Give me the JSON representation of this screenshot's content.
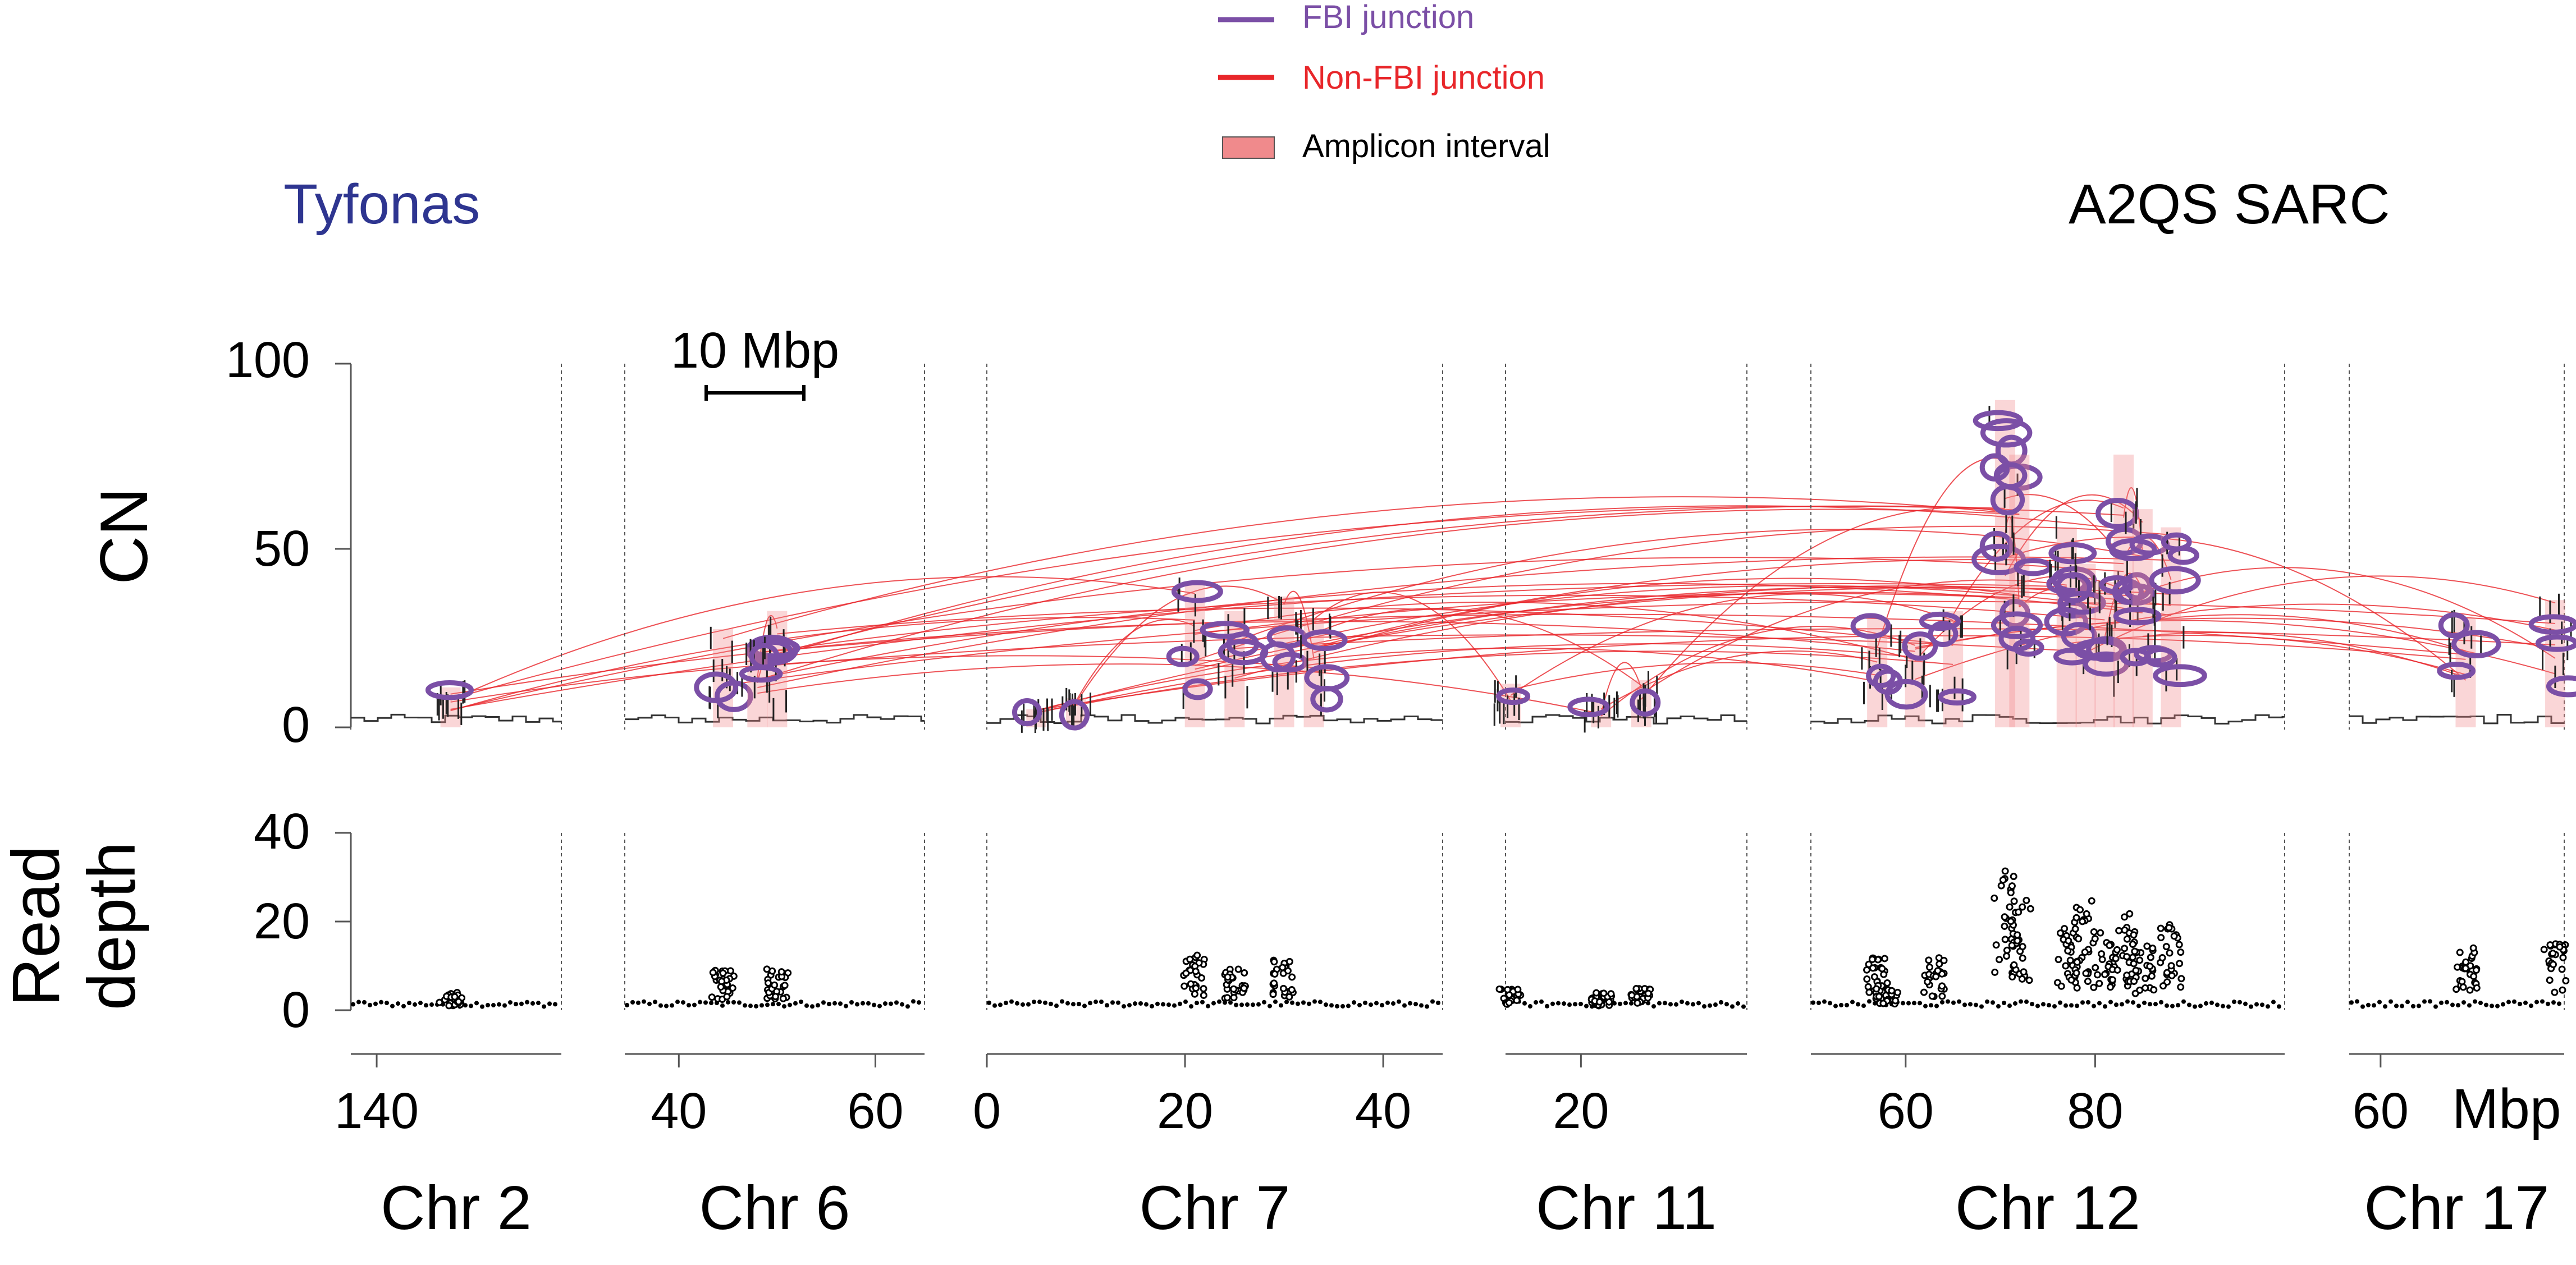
{
  "legend": {
    "fbi_label": "FBI junction",
    "nonfbi_label": "Non-FBI junction",
    "amplicon_label": "Amplicon interval",
    "fbi_color": "#7b4fa6",
    "nonfbi_color": "#e8262a",
    "amplicon_color": "#f08a8c"
  },
  "method_label": "Tyfonas",
  "method_color": "#2e3590",
  "sample_label": "A2QS SARC",
  "scale_bar_label": "10 Mbp",
  "x_unit": "Mbp",
  "chart_data": {
    "type": "scatter",
    "panels": {
      "cn": {
        "ylabel": "CN",
        "yticks": [
          0,
          50,
          100
        ],
        "ylim": [
          0,
          100
        ]
      },
      "read_depth": {
        "ylabel_lines": [
          "Read",
          "depth"
        ],
        "yticks": [
          0,
          20,
          40
        ],
        "ylim": [
          0,
          40
        ]
      }
    },
    "chromosomes": [
      {
        "name": "Chr 2",
        "xlim": [
          136.5,
          165
        ],
        "ticks": [
          140
        ],
        "cn_peaks": [
          [
            150,
            11
          ]
        ],
        "rd_peaks": [
          [
            150,
            4
          ]
        ]
      },
      {
        "name": "Chr 6",
        "xlim": [
          34.5,
          65
        ],
        "ticks": [
          40,
          60
        ],
        "cn_peaks": [
          [
            44.5,
            27
          ],
          [
            50,
            32
          ],
          [
            48,
            22
          ]
        ],
        "rd_peaks": [
          [
            44.5,
            9
          ],
          [
            50,
            10
          ]
        ]
      },
      {
        "name": "Chr 7",
        "xlim": [
          0,
          46
        ],
        "ticks": [
          0,
          20,
          40
        ],
        "cn_peaks": [
          [
            5,
            5
          ],
          [
            9,
            8
          ],
          [
            21,
            40
          ],
          [
            25,
            32
          ],
          [
            30,
            36
          ],
          [
            33,
            30
          ]
        ],
        "rd_peaks": [
          [
            21,
            13
          ],
          [
            30,
            12
          ],
          [
            25,
            10
          ]
        ]
      },
      {
        "name": "Chr 11",
        "xlim": [
          12.5,
          36.5
        ],
        "ticks": [
          20
        ],
        "cn_peaks": [
          [
            13,
            12
          ],
          [
            22,
            7
          ],
          [
            26,
            13
          ]
        ],
        "rd_peaks": [
          [
            13,
            5
          ],
          [
            22,
            4
          ],
          [
            26,
            5
          ]
        ]
      },
      {
        "name": "Chr 12",
        "xlim": [
          50,
          100
        ],
        "ticks": [
          60,
          80
        ],
        "cn_peaks": [
          [
            57,
            30
          ],
          [
            61,
            25
          ],
          [
            65,
            32
          ],
          [
            70.5,
            90
          ],
          [
            72,
            75
          ],
          [
            77,
            55
          ],
          [
            79,
            45
          ],
          [
            81,
            40
          ],
          [
            83,
            75
          ],
          [
            85,
            60
          ],
          [
            88,
            55
          ]
        ],
        "rd_peaks": [
          [
            57,
            12
          ],
          [
            58,
            5
          ],
          [
            63,
            12
          ],
          [
            70.5,
            32
          ],
          [
            72,
            25
          ],
          [
            77,
            20
          ],
          [
            79,
            25
          ],
          [
            81,
            18
          ],
          [
            83,
            22
          ],
          [
            85,
            15
          ],
          [
            88,
            20
          ]
        ]
      },
      {
        "name": "Chr 17",
        "xlim": [
          56.5,
          80.5
        ],
        "ticks": [
          60
        ],
        "cn_peaks": [
          [
            69.5,
            30
          ],
          [
            79.5,
            35
          ]
        ],
        "rd_peaks": [
          [
            69.5,
            15
          ],
          [
            79.5,
            15
          ]
        ]
      }
    ],
    "series": [
      {
        "name": "FBI junction",
        "color": "#7b4fa6"
      },
      {
        "name": "Non-FBI junction",
        "color": "#e8262a"
      },
      {
        "name": "Amplicon interval",
        "color": "#f08a8c"
      }
    ],
    "legend_position": "top-center"
  }
}
